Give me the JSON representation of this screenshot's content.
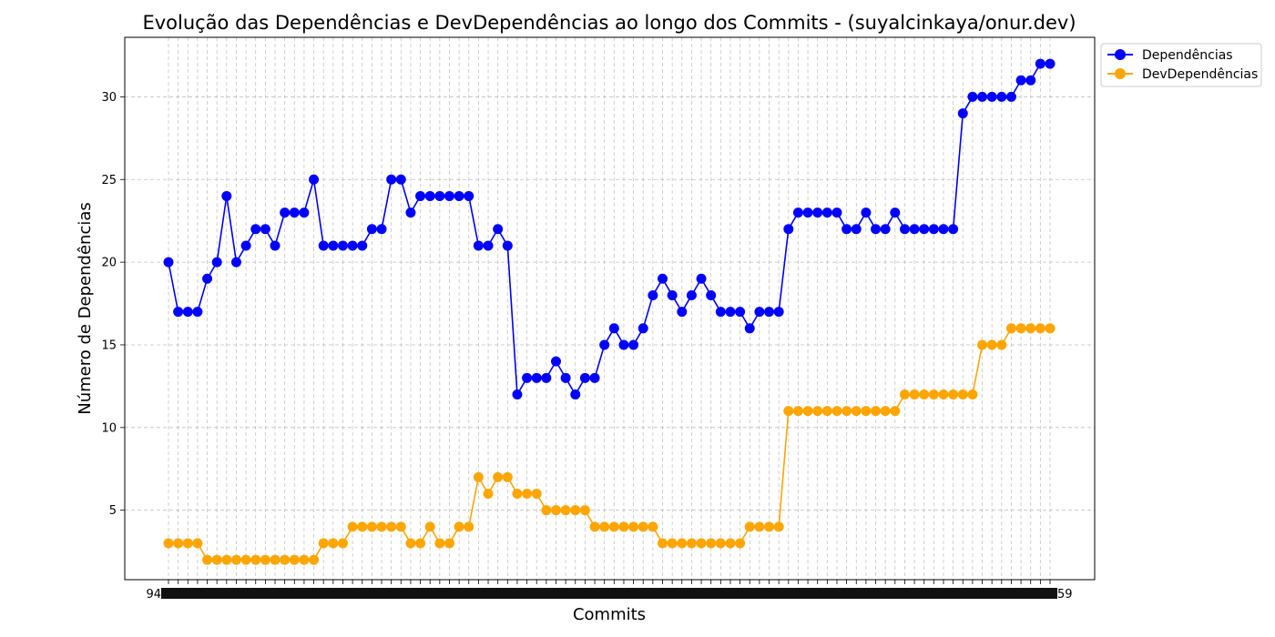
{
  "chart_data": {
    "type": "line",
    "title": "Evolução das Dependências e DevDependências ao longo dos Commits - (suyalcinkaya/onur.dev)",
    "xlabel": "Commits",
    "ylabel": "Número de Dependências",
    "ylim": [
      0.8,
      33.6
    ],
    "yticks": [
      5,
      10,
      15,
      20,
      25,
      30
    ],
    "grid": true,
    "grid_style": "dashed",
    "legend_position": "outside-top-right",
    "x_tick_labels_overlapping": true,
    "x_first_tick_label": "94",
    "x_last_tick_label": "59",
    "series": [
      {
        "name": "Dependências",
        "color": "#0000ff",
        "values": [
          20,
          17,
          17,
          17,
          19,
          20,
          24,
          20,
          21,
          22,
          22,
          21,
          23,
          23,
          23,
          25,
          21,
          21,
          21,
          21,
          21,
          22,
          22,
          25,
          25,
          23,
          24,
          24,
          24,
          24,
          24,
          24,
          21,
          21,
          22,
          21,
          12,
          13,
          13,
          13,
          14,
          13,
          12,
          13,
          13,
          15,
          16,
          15,
          15,
          16,
          18,
          19,
          18,
          17,
          18,
          19,
          18,
          17,
          17,
          17,
          16,
          17,
          17,
          17,
          22,
          23,
          23,
          23,
          23,
          23,
          22,
          22,
          23,
          22,
          22,
          23,
          22,
          22,
          22,
          22,
          22,
          22,
          29,
          30,
          30,
          30,
          30,
          30,
          31,
          31,
          32,
          32
        ]
      },
      {
        "name": "DevDependências",
        "color": "#ffa500",
        "values": [
          3,
          3,
          3,
          3,
          2,
          2,
          2,
          2,
          2,
          2,
          2,
          2,
          2,
          2,
          2,
          2,
          3,
          3,
          3,
          4,
          4,
          4,
          4,
          4,
          4,
          3,
          3,
          4,
          3,
          3,
          4,
          4,
          7,
          6,
          7,
          7,
          6,
          6,
          6,
          5,
          5,
          5,
          5,
          5,
          4,
          4,
          4,
          4,
          4,
          4,
          4,
          3,
          3,
          3,
          3,
          3,
          3,
          3,
          3,
          3,
          4,
          4,
          4,
          4,
          11,
          11,
          11,
          11,
          11,
          11,
          11,
          11,
          11,
          11,
          11,
          11,
          12,
          12,
          12,
          12,
          12,
          12,
          12,
          12,
          15,
          15,
          15,
          16,
          16,
          16,
          16,
          16
        ]
      }
    ]
  }
}
